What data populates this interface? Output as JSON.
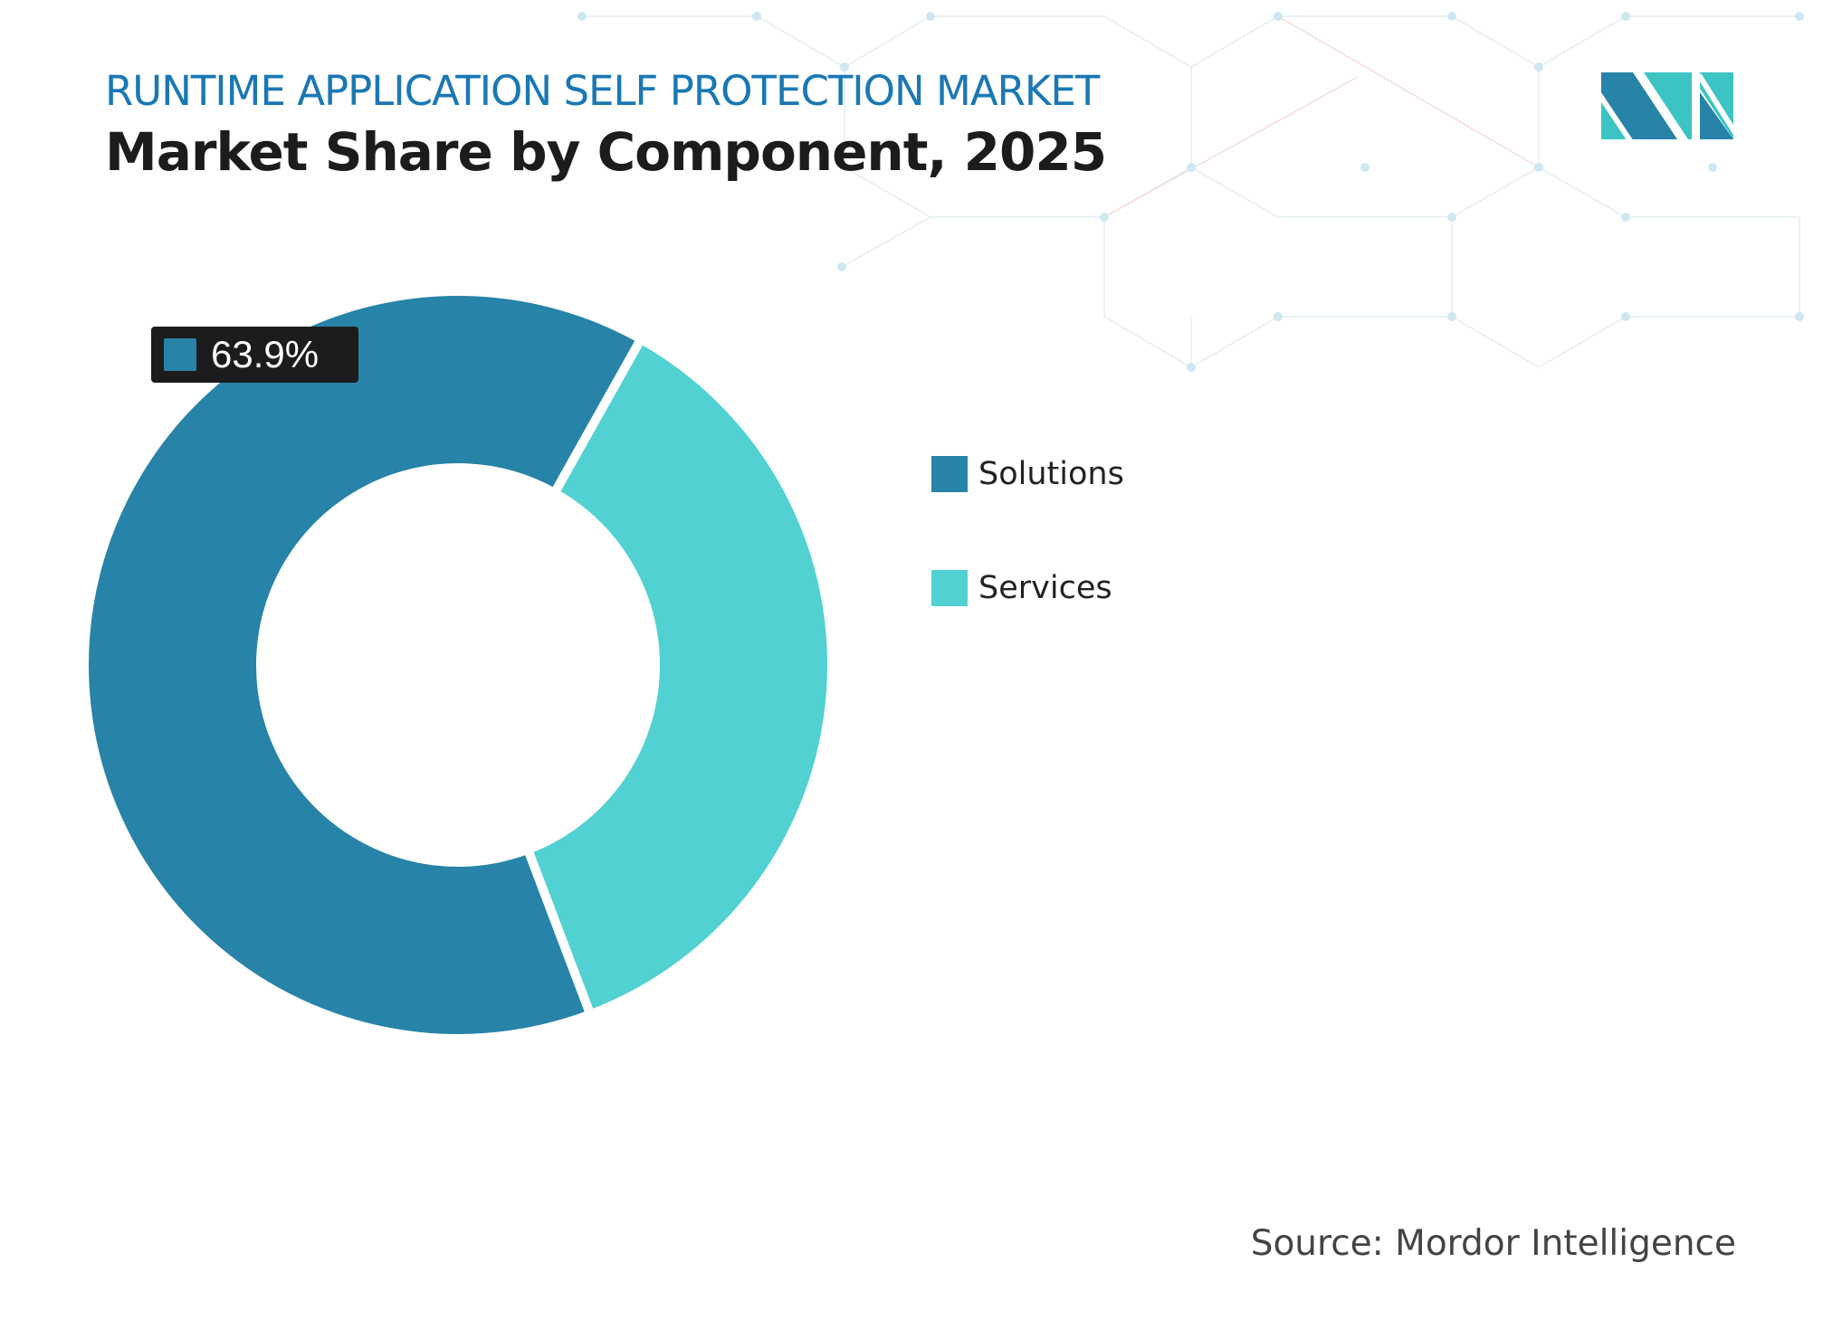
{
  "header": {
    "kicker": "RUNTIME APPLICATION SELF PROTECTION MARKET",
    "title": "Market Share by Component, 2025"
  },
  "source": "Source: Mordor Intelligence",
  "logo": {
    "name": "mordor-intelligence-logo",
    "colors": [
      "#2783a8",
      "#3cc4c4"
    ]
  },
  "chart_data": {
    "type": "pie",
    "variant": "donut",
    "title": "Market Share by Component, 2025",
    "categories": [
      "Solutions",
      "Services"
    ],
    "values": [
      63.9,
      36.1
    ],
    "unit": "%",
    "colors": [
      "#2783a8",
      "#52d1d3"
    ],
    "data_labels": [
      {
        "category": "Solutions",
        "text": "63.9%"
      }
    ],
    "legend": {
      "placement": "right",
      "entries": [
        "Solutions",
        "Services"
      ]
    }
  }
}
